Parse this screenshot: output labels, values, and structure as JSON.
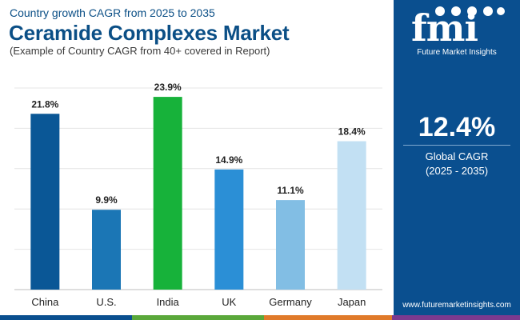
{
  "header": {
    "subtitle": "Country growth CAGR from 2025 to 2035",
    "title": "Ceramide Complexes Market",
    "note": "(Example of Country CAGR from 40+ covered in Report)"
  },
  "chart_data": {
    "type": "bar",
    "title": "Ceramide Complexes Market",
    "categories": [
      "China",
      "U.S.",
      "India",
      "UK",
      "Germany",
      "Japan"
    ],
    "values": [
      21.8,
      9.9,
      23.9,
      14.9,
      11.1,
      18.4
    ],
    "value_labels": [
      "21.8%",
      "9.9%",
      "23.9%",
      "14.9%",
      "11.1%",
      "18.4%"
    ],
    "colors": [
      "#0a5796",
      "#1b76b5",
      "#17b23a",
      "#2b8fd6",
      "#82bee4",
      "#c2e0f3"
    ],
    "ylim": [
      0,
      25
    ],
    "grid": true,
    "xlabel": "",
    "ylabel": ""
  },
  "sidebar": {
    "logo_text": "fmi",
    "logo_subtitle": "Future Market Insights",
    "global_cagr_value": "12.4%",
    "global_cagr_label": "Global CAGR",
    "global_cagr_period": "(2025 - 2035)",
    "website": "www.futuremarketinsights.com"
  },
  "colors": {
    "brand_blue": "#0a4f8f",
    "title_blue": "#0b4f86",
    "footer": [
      "#0a4f8f",
      "#5aa83a",
      "#e07a2a",
      "#7b3a8f"
    ]
  }
}
